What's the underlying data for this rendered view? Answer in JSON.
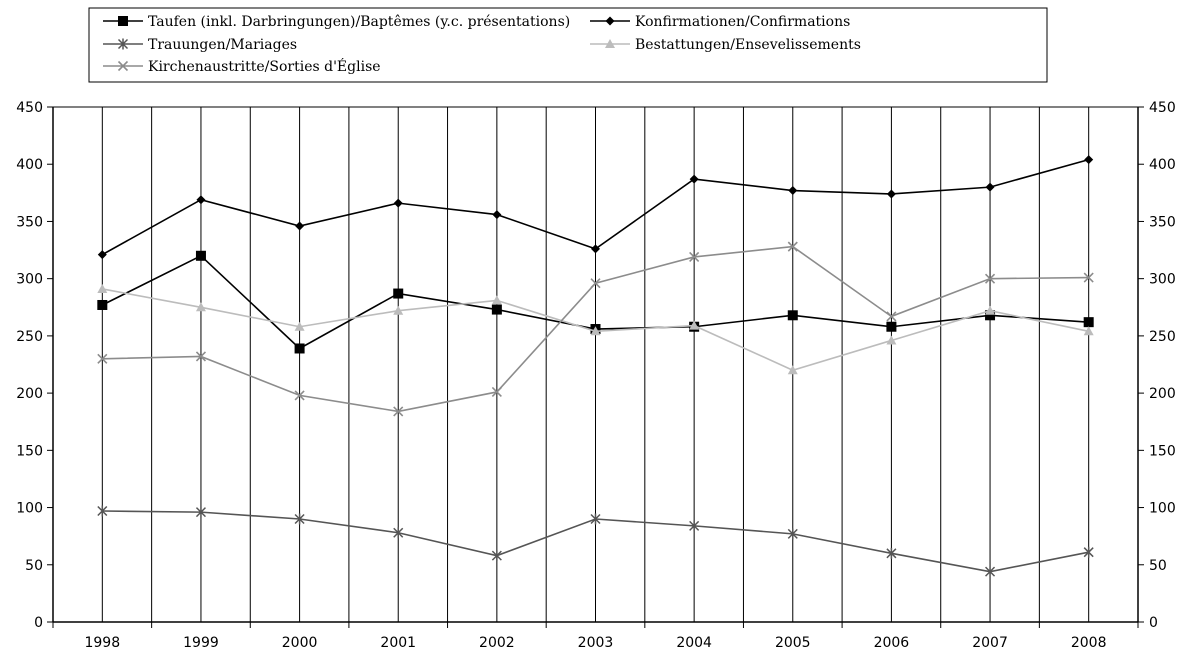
{
  "chart_data": {
    "type": "line",
    "categories": [
      "1998",
      "1999",
      "2000",
      "2001",
      "2002",
      "2003",
      "2004",
      "2005",
      "2006",
      "2007",
      "2008"
    ],
    "ylim": [
      0,
      450
    ],
    "y_ticks": [
      "0",
      "50",
      "100",
      "150",
      "200",
      "250",
      "300",
      "350",
      "400",
      "450"
    ],
    "grid": "vertical lines between and on categories",
    "legend_position": "top",
    "series": [
      {
        "name": "Taufen (inkl. Darbringungen)/Baptêmes (y.c. présentations)",
        "marker": "square",
        "color": "#000000",
        "values": [
          277,
          320,
          239,
          287,
          273,
          256,
          258,
          268,
          258,
          268,
          262
        ]
      },
      {
        "name": "Konfirmationen/Confirmations",
        "marker": "diamond",
        "color": "#000000",
        "values": [
          321,
          369,
          346,
          366,
          356,
          326,
          387,
          377,
          374,
          380,
          404
        ]
      },
      {
        "name": "Trauungen/Mariages",
        "marker": "asterisk",
        "color": "#555555",
        "values": [
          97,
          96,
          90,
          78,
          58,
          90,
          84,
          77,
          60,
          44,
          61
        ]
      },
      {
        "name": "Bestattungen/Ensevelissements",
        "marker": "triangle",
        "color": "#bcbcbc",
        "values": [
          291,
          275,
          258,
          272,
          281,
          254,
          259,
          220,
          246,
          272,
          254
        ]
      },
      {
        "name": "Kirchenaustritte/Sorties d'Église",
        "marker": "cross",
        "color": "#8c8c8c",
        "values": [
          230,
          232,
          198,
          184,
          201,
          296,
          319,
          328,
          267,
          300,
          301
        ]
      }
    ]
  }
}
